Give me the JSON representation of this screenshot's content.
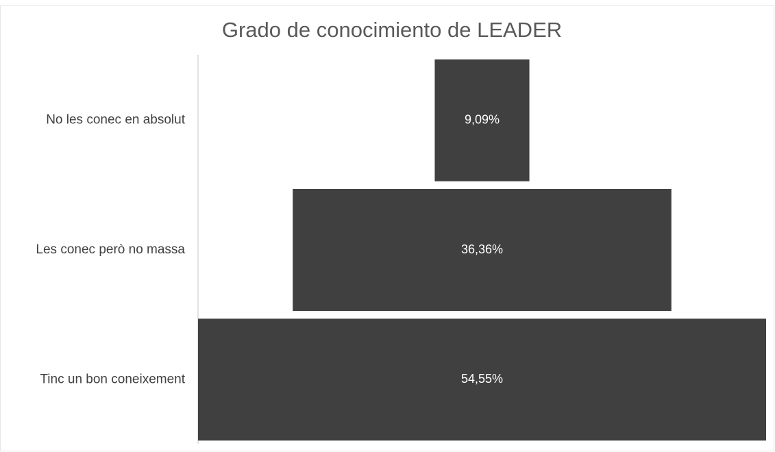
{
  "chart_data": {
    "type": "funnel",
    "title": "Grado de conocimiento de LEADER",
    "categories": [
      "No les conec en absolut",
      "Les conec però no massa",
      "Tinc un bon coneixement"
    ],
    "values": [
      9.09,
      36.36,
      54.55
    ],
    "value_labels": [
      "9,09%",
      "36,36%",
      "54,55%"
    ],
    "color": "#404040"
  }
}
